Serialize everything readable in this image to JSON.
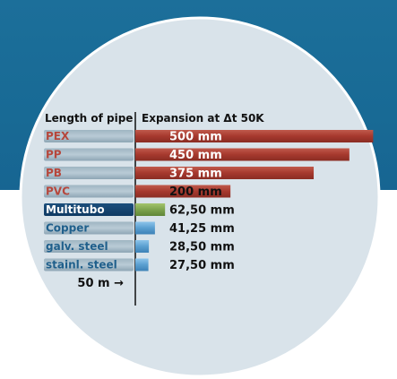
{
  "chart_data": {
    "type": "bar",
    "orientation": "horizontal",
    "title": "",
    "header_left": "Length of pipe",
    "header_right": "Expansion at Δt 50K",
    "scale_label": "50 m →",
    "unit": "mm",
    "xlim": [
      0,
      520
    ],
    "categories": [
      "PEX",
      "PP",
      "PB",
      "PVC",
      "Multitubo",
      "Copper",
      "galv. steel",
      "stainl. steel"
    ],
    "values": [
      500,
      450,
      375,
      200,
      62.5,
      41.25,
      28.5,
      27.5
    ],
    "value_labels": [
      "500 mm",
      "450 mm",
      "375 mm",
      "200 mm",
      "62,50 mm",
      "41,25 mm",
      "28,50 mm",
      "27,50 mm"
    ],
    "bar_colors": [
      "#a6392e",
      "#a6392e",
      "#a6392e",
      "#a6392e",
      "#7da34d",
      "#5a9fd0",
      "#5a9fd0",
      "#5a9fd0"
    ],
    "label_colors": [
      "#b6473c",
      "#b6473c",
      "#b6473c",
      "#b6473c",
      "#ffffff",
      "#1f5f8b",
      "#1f5f8b",
      "#1f5f8b"
    ],
    "grid": false,
    "legend": "none"
  },
  "colors": {
    "background_band": "#1a6d98",
    "circle_fill": "#d9e3ea",
    "circle_stroke": "#ffffff"
  }
}
